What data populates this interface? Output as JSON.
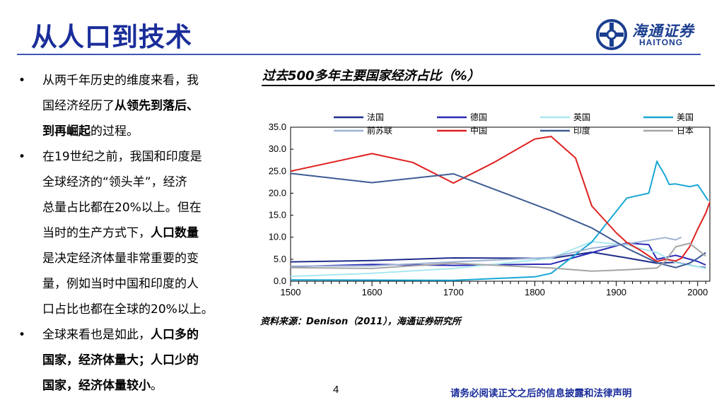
{
  "page": {
    "title": "从人口到技术",
    "page_number": "4",
    "disclaimer": "请务必阅读正文之后的信息披露和法律声明"
  },
  "logo": {
    "cn": "海通证券",
    "en": "HAITONG"
  },
  "bullets": [
    {
      "lines": [
        [
          {
            "t": "从两千年历史的维度来看，我"
          }
        ],
        [
          {
            "t": "国经济经历了"
          },
          {
            "t": "从领先到落后、",
            "b": true
          }
        ],
        [
          {
            "t": "到再崛起",
            "b": true
          },
          {
            "t": "的过程。"
          }
        ]
      ]
    },
    {
      "lines": [
        [
          {
            "t": "在19世纪之前，我国和印度是"
          }
        ],
        [
          {
            "t": "全球经济的“领头羊”，经济"
          }
        ],
        [
          {
            "t": "总量占比都在20%以上。但在"
          }
        ],
        [
          {
            "t": "当时的生产方式下，"
          },
          {
            "t": "人口数量",
            "b": true
          }
        ],
        [
          {
            "t": "是决定经济体量非常重要的变"
          }
        ],
        [
          {
            "t": "量，例如当时中国和印度的人"
          }
        ],
        [
          {
            "t": "口占比也都在全球的20%以上。"
          }
        ]
      ]
    },
    {
      "lines": [
        [
          {
            "t": "全球来看也是如此，"
          },
          {
            "t": "人口多的",
            "b": true
          }
        ],
        [
          {
            "t": "国家，经济体量大；人口少的",
            "b": true
          }
        ],
        [
          {
            "t": "国家，经济体量较小",
            "b": true
          },
          {
            "t": "。"
          }
        ]
      ]
    }
  ],
  "bullet_symbol": "•",
  "chart_title": "过去500多年主要国家经济占比（%）",
  "source_note": "资料来源：Denison（2011），海通证券研究所",
  "chart_data": {
    "type": "line",
    "title": "过去500多年主要国家经济占比（%）",
    "xlim": [
      1500,
      2015
    ],
    "ylim": [
      0,
      35
    ],
    "x_ticks": [
      1500,
      1600,
      1700,
      1800,
      1900,
      2000
    ],
    "y_ticks": [
      "0.0",
      "5.0",
      "10.0",
      "15.0",
      "20.0",
      "25.0",
      "30.0",
      "35.0"
    ],
    "legend_placement": "top",
    "series": [
      {
        "name": "法国",
        "color": "#1f2f8a",
        "points": [
          [
            1500,
            4.4
          ],
          [
            1600,
            4.7
          ],
          [
            1700,
            5.3
          ],
          [
            1820,
            5.2
          ],
          [
            1870,
            6.6
          ],
          [
            1913,
            5.3
          ],
          [
            1950,
            4.1
          ],
          [
            1973,
            4.3
          ],
          [
            2000,
            3.3
          ],
          [
            2010,
            3.1
          ]
        ]
      },
      {
        "name": "德国",
        "color": "#2a2ab8",
        "points": [
          [
            1500,
            3.3
          ],
          [
            1600,
            3.8
          ],
          [
            1700,
            3.6
          ],
          [
            1820,
            3.9
          ],
          [
            1870,
            6.5
          ],
          [
            1913,
            8.7
          ],
          [
            1940,
            8.3
          ],
          [
            1950,
            5.0
          ],
          [
            1973,
            5.9
          ],
          [
            2000,
            4.5
          ],
          [
            2010,
            3.7
          ]
        ]
      },
      {
        "name": "英国",
        "color": "#a9e8f0",
        "points": [
          [
            1500,
            1.1
          ],
          [
            1600,
            1.8
          ],
          [
            1700,
            2.9
          ],
          [
            1820,
            5.2
          ],
          [
            1870,
            9.0
          ],
          [
            1913,
            8.2
          ],
          [
            1950,
            6.5
          ],
          [
            1973,
            4.2
          ],
          [
            2000,
            3.3
          ],
          [
            2010,
            2.9
          ]
        ]
      },
      {
        "name": "美国",
        "color": "#1aa7d4",
        "points": [
          [
            1500,
            0.3
          ],
          [
            1700,
            0.2
          ],
          [
            1800,
            1.0
          ],
          [
            1820,
            1.8
          ],
          [
            1870,
            8.9
          ],
          [
            1913,
            18.9
          ],
          [
            1940,
            20.0
          ],
          [
            1950,
            27.3
          ],
          [
            1952,
            26.5
          ],
          [
            1960,
            24.0
          ],
          [
            1965,
            22.0
          ],
          [
            1973,
            22.1
          ],
          [
            1990,
            21.5
          ],
          [
            2000,
            21.9
          ],
          [
            2007,
            20.0
          ],
          [
            2013,
            18.3
          ]
        ]
      },
      {
        "name": "前苏联",
        "color": "#9db3d3",
        "points": [
          [
            1500,
            3.4
          ],
          [
            1600,
            3.5
          ],
          [
            1700,
            4.4
          ],
          [
            1820,
            5.4
          ],
          [
            1870,
            7.5
          ],
          [
            1913,
            8.5
          ],
          [
            1950,
            9.6
          ],
          [
            1960,
            9.9
          ],
          [
            1973,
            9.4
          ],
          [
            1980,
            10.0
          ]
        ]
      },
      {
        "name": "中国",
        "color": "#e02020",
        "points": [
          [
            1500,
            25.0
          ],
          [
            1600,
            29.0
          ],
          [
            1650,
            27.0
          ],
          [
            1700,
            22.3
          ],
          [
            1750,
            27.0
          ],
          [
            1800,
            32.3
          ],
          [
            1820,
            32.9
          ],
          [
            1850,
            28.0
          ],
          [
            1870,
            17.1
          ],
          [
            1900,
            11.0
          ],
          [
            1913,
            8.8
          ],
          [
            1930,
            7.0
          ],
          [
            1950,
            4.5
          ],
          [
            1960,
            5.0
          ],
          [
            1973,
            4.6
          ],
          [
            1980,
            5.2
          ],
          [
            1990,
            7.8
          ],
          [
            2000,
            11.8
          ],
          [
            2010,
            15.5
          ],
          [
            2015,
            18.0
          ]
        ]
      },
      {
        "name": "印度",
        "color": "#3e5c94",
        "points": [
          [
            1500,
            24.5
          ],
          [
            1600,
            22.4
          ],
          [
            1700,
            24.4
          ],
          [
            1820,
            16.0
          ],
          [
            1870,
            12.1
          ],
          [
            1913,
            7.5
          ],
          [
            1950,
            4.2
          ],
          [
            1973,
            3.1
          ],
          [
            1990,
            4.1
          ],
          [
            2000,
            5.2
          ],
          [
            2010,
            6.5
          ]
        ]
      },
      {
        "name": "日本",
        "color": "#a5a5a5",
        "points": [
          [
            1500,
            3.1
          ],
          [
            1600,
            2.9
          ],
          [
            1700,
            4.1
          ],
          [
            1820,
            3.0
          ],
          [
            1870,
            2.3
          ],
          [
            1913,
            2.6
          ],
          [
            1950,
            3.0
          ],
          [
            1960,
            4.5
          ],
          [
            1973,
            7.8
          ],
          [
            1990,
            8.6
          ],
          [
            2000,
            7.2
          ],
          [
            2010,
            5.7
          ]
        ]
      }
    ]
  }
}
